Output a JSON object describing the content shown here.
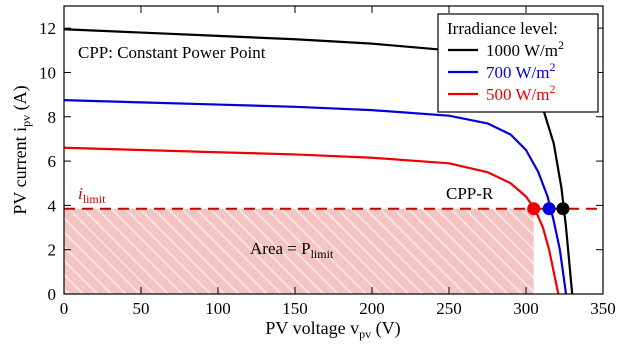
{
  "chart_data": {
    "type": "line",
    "xlabel": "PV voltage v",
    "xlabel_sub": "pv",
    "xlabel_unit": " (V)",
    "ylabel": "PV current i",
    "ylabel_sub": "pv",
    "ylabel_unit": " (A)",
    "xlim": [
      0,
      350
    ],
    "ylim": [
      0,
      13
    ],
    "xticks": [
      0,
      50,
      100,
      150,
      200,
      250,
      300,
      350
    ],
    "yticks": [
      0,
      2,
      4,
      6,
      8,
      10,
      12
    ],
    "legend": {
      "title": "Irradiance level:",
      "placement": "top-right"
    },
    "series": [
      {
        "name": "1000 W/m",
        "name_sup": "2",
        "color": "#000000",
        "isc": 11.95,
        "voc": 330,
        "points": [
          [
            0,
            11.95
          ],
          [
            50,
            11.8
          ],
          [
            100,
            11.65
          ],
          [
            150,
            11.5
          ],
          [
            200,
            11.3
          ],
          [
            250,
            11.0
          ],
          [
            280,
            10.6
          ],
          [
            300,
            9.8
          ],
          [
            310,
            8.6
          ],
          [
            318,
            6.8
          ],
          [
            323,
            4.8
          ],
          [
            326,
            3.0
          ],
          [
            328,
            1.5
          ],
          [
            330,
            0
          ]
        ]
      },
      {
        "name": "700 W/m",
        "name_sup": "2",
        "color": "#0000dd",
        "isc": 8.75,
        "voc": 326,
        "points": [
          [
            0,
            8.75
          ],
          [
            50,
            8.65
          ],
          [
            100,
            8.55
          ],
          [
            150,
            8.45
          ],
          [
            200,
            8.3
          ],
          [
            250,
            8.05
          ],
          [
            275,
            7.7
          ],
          [
            290,
            7.2
          ],
          [
            300,
            6.5
          ],
          [
            308,
            5.5
          ],
          [
            314,
            4.4
          ],
          [
            318,
            3.3
          ],
          [
            322,
            2.0
          ],
          [
            324,
            1.0
          ],
          [
            326,
            0
          ]
        ]
      },
      {
        "name": "500 W/m",
        "name_sup": "2",
        "color": "#ee0000",
        "isc": 6.6,
        "voc": 321,
        "points": [
          [
            0,
            6.6
          ],
          [
            50,
            6.5
          ],
          [
            100,
            6.4
          ],
          [
            150,
            6.3
          ],
          [
            200,
            6.15
          ],
          [
            250,
            5.9
          ],
          [
            275,
            5.5
          ],
          [
            290,
            5.0
          ],
          [
            300,
            4.4
          ],
          [
            306,
            3.8
          ],
          [
            311,
            3.0
          ],
          [
            315,
            2.0
          ],
          [
            318,
            1.0
          ],
          [
            321,
            0
          ]
        ]
      }
    ],
    "limit_line": {
      "value": 3.85,
      "label": "i",
      "label_sub": "limit",
      "color": "#cc0000"
    },
    "shaded_area": {
      "x_end": 305,
      "y_top": 3.85,
      "label": "Area = P",
      "label_sub": "limit",
      "color": "#f2b8b8"
    },
    "cpp_points": [
      {
        "x": 305,
        "y": 3.85,
        "color": "#ee0000"
      },
      {
        "x": 315,
        "y": 3.85,
        "color": "#0000dd"
      },
      {
        "x": 324,
        "y": 3.85,
        "color": "#000000"
      }
    ],
    "annotations": {
      "cpp_definition": "CPP: Constant Power Point",
      "cpp_r": "CPP-R"
    }
  }
}
